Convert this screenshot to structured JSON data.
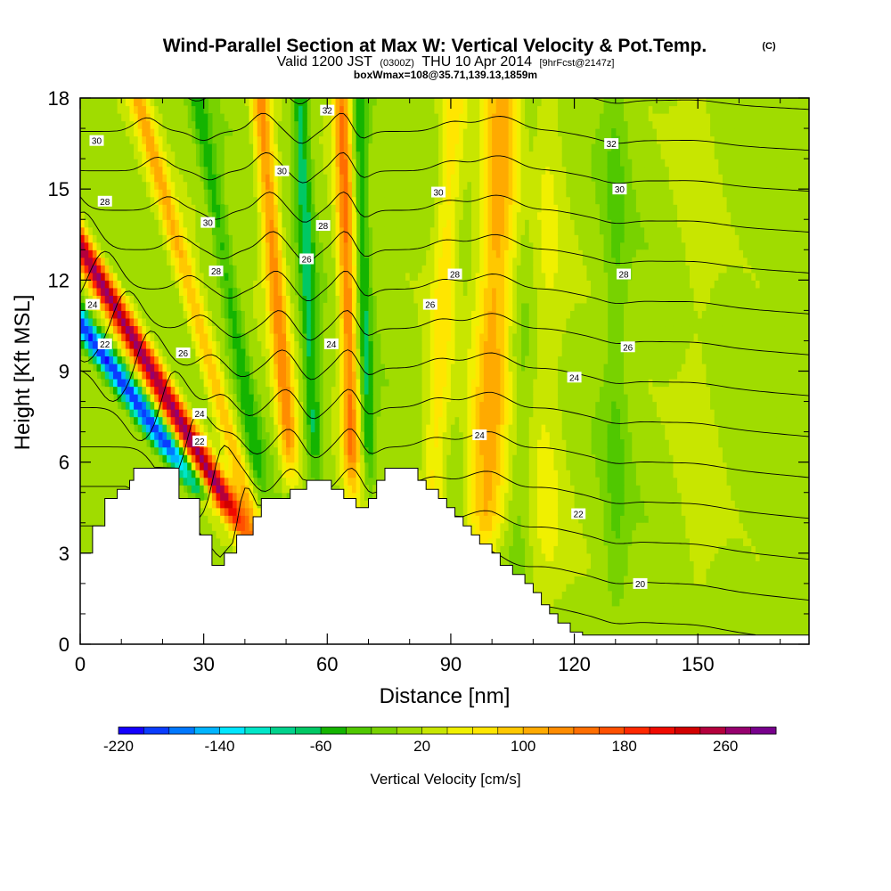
{
  "chart_data": {
    "type": "heatmap",
    "title": "Wind-Parallel Section at Max W: Vertical Velocity & Pot.Temp.",
    "title_mark": "(C)",
    "subtitle": {
      "prefix": "Valid 1200 JST",
      "utc": "(0300Z)",
      "date": "THU 10 Apr 2014",
      "fcst": "[9hrFcst@2147z]"
    },
    "box_info": "boxWmax=108@35.71,139.13,1859m",
    "xlabel": "Distance [nm]",
    "ylabel": "Height [Kft MSL]",
    "xlim": [
      0,
      177
    ],
    "ylim": [
      0,
      18
    ],
    "x_ticks": [
      "0",
      "30",
      "60",
      "90",
      "120",
      "150"
    ],
    "y_ticks": [
      "0",
      "3",
      "6",
      "9",
      "12",
      "15",
      "18"
    ],
    "colorbar": {
      "label": "Vertical Velocity [cm/s]",
      "tick_labels": [
        "-220",
        "-140",
        "-60",
        "20",
        "100",
        "180",
        "260"
      ],
      "levels": [
        -220,
        -200,
        -180,
        -160,
        -140,
        -120,
        -100,
        -80,
        -60,
        -40,
        -20,
        0,
        20,
        40,
        60,
        80,
        100,
        120,
        140,
        160,
        180,
        200,
        220,
        240,
        260,
        280,
        300
      ],
      "colors": [
        "#1400ff",
        "#0a3cff",
        "#0078ff",
        "#00b4ff",
        "#00e6ff",
        "#00e6c8",
        "#00d28c",
        "#00c864",
        "#14b400",
        "#50c800",
        "#78d200",
        "#a0dc00",
        "#c8e600",
        "#f0f000",
        "#ffe600",
        "#ffc800",
        "#ffaa00",
        "#ff8c00",
        "#ff6e00",
        "#ff5000",
        "#ff2800",
        "#f00a00",
        "#d20000",
        "#b4003c",
        "#96006e",
        "#78008c"
      ]
    },
    "terrain_kft": [
      [
        0,
        3.0
      ],
      [
        3,
        3.9
      ],
      [
        6,
        4.8
      ],
      [
        9,
        5.1
      ],
      [
        12,
        5.4
      ],
      [
        13,
        5.8
      ],
      [
        22,
        5.8
      ],
      [
        24,
        4.8
      ],
      [
        26,
        4.8
      ],
      [
        29,
        3.6
      ],
      [
        32,
        2.6
      ],
      [
        35,
        3.0
      ],
      [
        38,
        3.6
      ],
      [
        42,
        4.2
      ],
      [
        44,
        4.8
      ],
      [
        49,
        4.8
      ],
      [
        51,
        5.1
      ],
      [
        55,
        5.4
      ],
      [
        60,
        5.4
      ],
      [
        61,
        5.1
      ],
      [
        64,
        4.8
      ],
      [
        67,
        4.5
      ],
      [
        70,
        4.8
      ],
      [
        72,
        5.4
      ],
      [
        74,
        5.8
      ],
      [
        80,
        5.8
      ],
      [
        82,
        5.4
      ],
      [
        84,
        5.1
      ],
      [
        87,
        4.8
      ],
      [
        89,
        4.5
      ],
      [
        91,
        4.2
      ],
      [
        93,
        3.9
      ],
      [
        95,
        3.6
      ],
      [
        97,
        3.3
      ],
      [
        100,
        3.0
      ],
      [
        102,
        2.6
      ],
      [
        105,
        2.3
      ],
      [
        108,
        2.0
      ],
      [
        110,
        1.7
      ],
      [
        112,
        1.3
      ],
      [
        114,
        1.0
      ],
      [
        116,
        0.7
      ],
      [
        119,
        0.4
      ],
      [
        122,
        0.3
      ],
      [
        177,
        0.3
      ]
    ],
    "w_bands": [
      {
        "x": 24,
        "slope": -5.2,
        "w": 3.0,
        "v": -220,
        "z0": 4.8
      },
      {
        "x": 30,
        "slope": -4.2,
        "w": 3.0,
        "v": 250,
        "z0": 3.2
      },
      {
        "x": 38,
        "slope": -2.0,
        "w": 2.5,
        "v": 90,
        "z0": 3.0
      },
      {
        "x": 43,
        "slope": -1.2,
        "w": 2.2,
        "v": -60,
        "z0": 4.5
      },
      {
        "x": 51,
        "slope": -0.6,
        "w": 2.4,
        "v": 120,
        "z0": 5.0
      },
      {
        "x": 57,
        "slope": -0.3,
        "w": 2.0,
        "v": -80,
        "z0": 5.2
      },
      {
        "x": 66,
        "slope": -0.2,
        "w": 2.2,
        "v": 130,
        "z0": 4.6
      },
      {
        "x": 70,
        "slope": -0.2,
        "w": 1.8,
        "v": -70,
        "z0": 4.8
      },
      {
        "x": 86,
        "slope": 0.4,
        "w": 3.0,
        "v": 60,
        "z0": 3.0
      },
      {
        "x": 99,
        "slope": 0.3,
        "w": 4.5,
        "v": 100,
        "z0": 2.5
      },
      {
        "x": 107,
        "slope": 0.2,
        "w": 3.0,
        "v": -20,
        "z0": 1.5
      },
      {
        "x": 113,
        "slope": 0.0,
        "w": 5.0,
        "v": 30,
        "z0": 0.5
      },
      {
        "x": 130,
        "slope": 0.0,
        "w": 3.0,
        "v": -30,
        "z0": 0.3
      },
      {
        "x": 150,
        "slope": 0.0,
        "w": 5.0,
        "v": 20,
        "z0": 0.3
      }
    ],
    "theta_labels": [
      {
        "text": "30",
        "x": 4,
        "y": 16.6
      },
      {
        "text": "28",
        "x": 6,
        "y": 14.6
      },
      {
        "text": "24",
        "x": 3,
        "y": 11.2
      },
      {
        "text": "22",
        "x": 6,
        "y": 9.9
      },
      {
        "text": "26",
        "x": 25,
        "y": 9.6
      },
      {
        "text": "24",
        "x": 29,
        "y": 7.6
      },
      {
        "text": "22",
        "x": 29,
        "y": 6.7
      },
      {
        "text": "30",
        "x": 31,
        "y": 13.9
      },
      {
        "text": "28",
        "x": 33,
        "y": 12.3
      },
      {
        "text": "30",
        "x": 49,
        "y": 15.6
      },
      {
        "text": "28",
        "x": 59,
        "y": 13.8
      },
      {
        "text": "26",
        "x": 55,
        "y": 12.7
      },
      {
        "text": "24",
        "x": 61,
        "y": 9.9
      },
      {
        "text": "32",
        "x": 60,
        "y": 17.6
      },
      {
        "text": "30",
        "x": 87,
        "y": 14.9
      },
      {
        "text": "28",
        "x": 91,
        "y": 12.2
      },
      {
        "text": "26",
        "x": 85,
        "y": 11.2
      },
      {
        "text": "24",
        "x": 97,
        "y": 6.9
      },
      {
        "text": "32",
        "x": 129,
        "y": 16.5
      },
      {
        "text": "30",
        "x": 131,
        "y": 15.0
      },
      {
        "text": "28",
        "x": 132,
        "y": 12.2
      },
      {
        "text": "26",
        "x": 133,
        "y": 9.8
      },
      {
        "text": "24",
        "x": 120,
        "y": 8.8
      },
      {
        "text": "22",
        "x": 121,
        "y": 4.3
      },
      {
        "text": "20",
        "x": 136,
        "y": 2.0
      }
    ]
  }
}
